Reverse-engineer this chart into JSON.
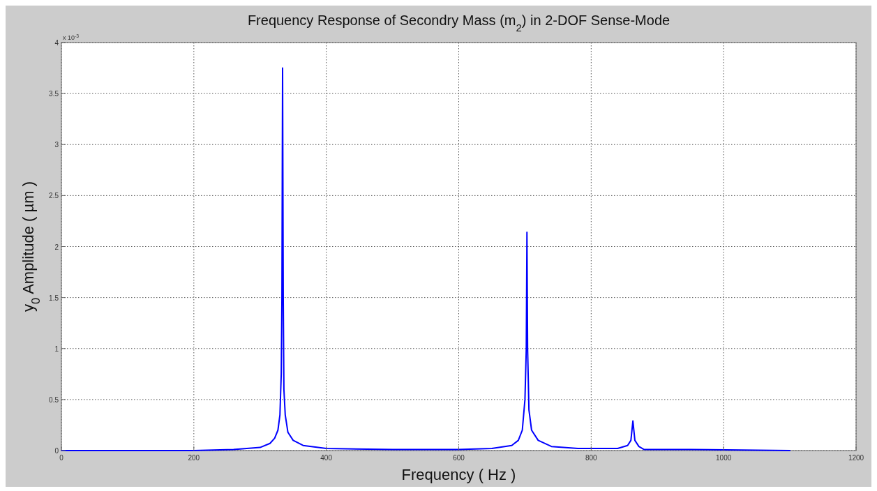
{
  "chart_data": {
    "type": "line",
    "title": "Frequency Response of Secondry Mass (m$_{2}$) in  2-DOF Sense-Mode",
    "xlabel": "Frequency ( Hz )",
    "ylabel": "y$_{0}$ Amplitude ( µm )",
    "annotations": [
      "x 10$^{-3}$"
    ],
    "xlim": [
      0,
      1200
    ],
    "xticks": [
      0,
      200,
      400,
      600,
      800,
      1000,
      1200
    ],
    "ylim": [
      0,
      4
    ],
    "yticks": [
      0,
      0.5,
      1,
      1.5,
      2,
      2.5,
      3,
      3.5,
      4
    ],
    "grid": true,
    "line_style": "solid",
    "series": [
      {
        "color": "#0000ff",
        "x": [
          0,
          100,
          200,
          260,
          300,
          315,
          322,
          327,
          330,
          332,
          333,
          334,
          335,
          336,
          338,
          342,
          350,
          365,
          400,
          500,
          600,
          650,
          680,
          690,
          696,
          700,
          702,
          703,
          704,
          706,
          710,
          720,
          740,
          780,
          840,
          855,
          860,
          863,
          866,
          872,
          880,
          950,
          1100
        ],
        "values": [
          0,
          0,
          0,
          0.01,
          0.03,
          0.07,
          0.12,
          0.2,
          0.35,
          0.75,
          1.5,
          3.75,
          1.5,
          0.6,
          0.35,
          0.18,
          0.1,
          0.05,
          0.02,
          0.01,
          0.01,
          0.02,
          0.05,
          0.1,
          0.2,
          0.5,
          1,
          2.14,
          1,
          0.4,
          0.2,
          0.1,
          0.04,
          0.02,
          0.02,
          0.05,
          0.1,
          0.29,
          0.1,
          0.04,
          0.01,
          0.01,
          0
        ]
      }
    ]
  }
}
